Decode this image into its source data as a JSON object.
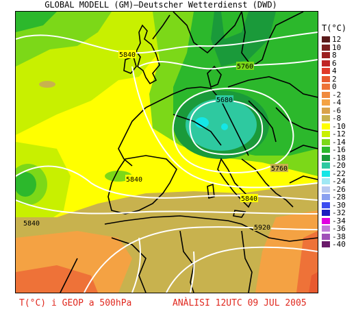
{
  "header": {
    "title": "GLOBAL MODELL (GM)—Deutscher Wetterdienst (DWD)"
  },
  "legend": {
    "title": "T(°C)",
    "items": [
      {
        "label": "12",
        "color": "#5a1a1a"
      },
      {
        "label": "10",
        "color": "#7a1f1f"
      },
      {
        "label": "8",
        "color": "#9c2020"
      },
      {
        "label": "6",
        "color": "#c02424"
      },
      {
        "label": "4",
        "color": "#e03a2a"
      },
      {
        "label": "2",
        "color": "#e85a30"
      },
      {
        "label": "0",
        "color": "#ee7238"
      },
      {
        "label": "-2",
        "color": "#f08a3e"
      },
      {
        "label": "-4",
        "color": "#f4a243"
      },
      {
        "label": "-6",
        "color": "#d9a24a"
      },
      {
        "label": "-8",
        "color": "#c8b24e"
      },
      {
        "label": "-10",
        "color": "#ffff00"
      },
      {
        "label": "-12",
        "color": "#c8f000"
      },
      {
        "label": "-14",
        "color": "#7cd818"
      },
      {
        "label": "-16",
        "color": "#2cb82c"
      },
      {
        "label": "-18",
        "color": "#1a9a3a"
      },
      {
        "label": "-20",
        "color": "#2ec9a0"
      },
      {
        "label": "-22",
        "color": "#14e6e6"
      },
      {
        "label": "-24",
        "color": "#a0e8f4"
      },
      {
        "label": "-26",
        "color": "#b8c8f0"
      },
      {
        "label": "-28",
        "color": "#8aa0f0"
      },
      {
        "label": "-30",
        "color": "#3c4cf0"
      },
      {
        "label": "-32",
        "color": "#1c1cc0"
      },
      {
        "label": "-34",
        "color": "#e000e0"
      },
      {
        "label": "-36",
        "color": "#c07ad8"
      },
      {
        "label": "-38",
        "color": "#a050b8"
      },
      {
        "label": "-40",
        "color": "#6a1a6a"
      }
    ]
  },
  "contours": {
    "labels": [
      "5840",
      "5760",
      "5680",
      "5840",
      "5760",
      "5840",
      "5840",
      "5920"
    ]
  },
  "footer": {
    "left": "T(°C) i GEOP a 500hPa",
    "right": "ANÀLISI 12UTC 09 JUL 2005"
  }
}
